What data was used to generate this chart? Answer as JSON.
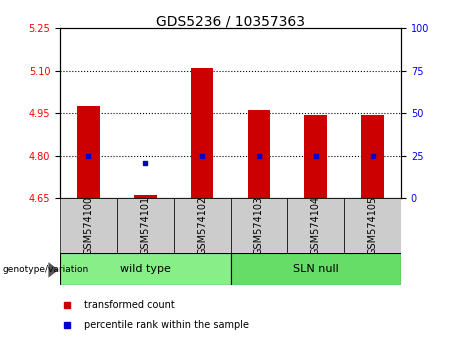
{
  "title": "GDS5236 / 10357363",
  "samples": [
    "GSM574100",
    "GSM574101",
    "GSM574102",
    "GSM574103",
    "GSM574104",
    "GSM574105"
  ],
  "bar_values": [
    4.975,
    4.663,
    5.11,
    4.963,
    4.945,
    4.945
  ],
  "percentile_values": [
    4.8,
    4.775,
    4.8,
    4.8,
    4.8,
    4.8
  ],
  "ylim_left": [
    4.65,
    5.25
  ],
  "ylim_right": [
    0,
    100
  ],
  "yticks_left": [
    4.65,
    4.8,
    4.95,
    5.1,
    5.25
  ],
  "yticks_right": [
    0,
    25,
    50,
    75,
    100
  ],
  "hlines": [
    5.1,
    4.95,
    4.8
  ],
  "bar_color": "#cc0000",
  "percentile_color": "#0000cc",
  "bar_width": 0.4,
  "groups": [
    {
      "label": "wild type",
      "samples": [
        0,
        1,
        2
      ],
      "color": "#88ee88"
    },
    {
      "label": "SLN null",
      "samples": [
        3,
        4,
        5
      ],
      "color": "#66dd66"
    }
  ],
  "group_label": "genotype/variation",
  "legend_items": [
    {
      "label": "transformed count",
      "color": "#cc0000"
    },
    {
      "label": "percentile rank within the sample",
      "color": "#0000cc"
    }
  ],
  "plot_bg": "#ffffff",
  "tick_area_bg": "#cccccc",
  "spine_color": "#000000",
  "title_fontsize": 10,
  "tick_fontsize": 7,
  "label_fontsize": 8
}
